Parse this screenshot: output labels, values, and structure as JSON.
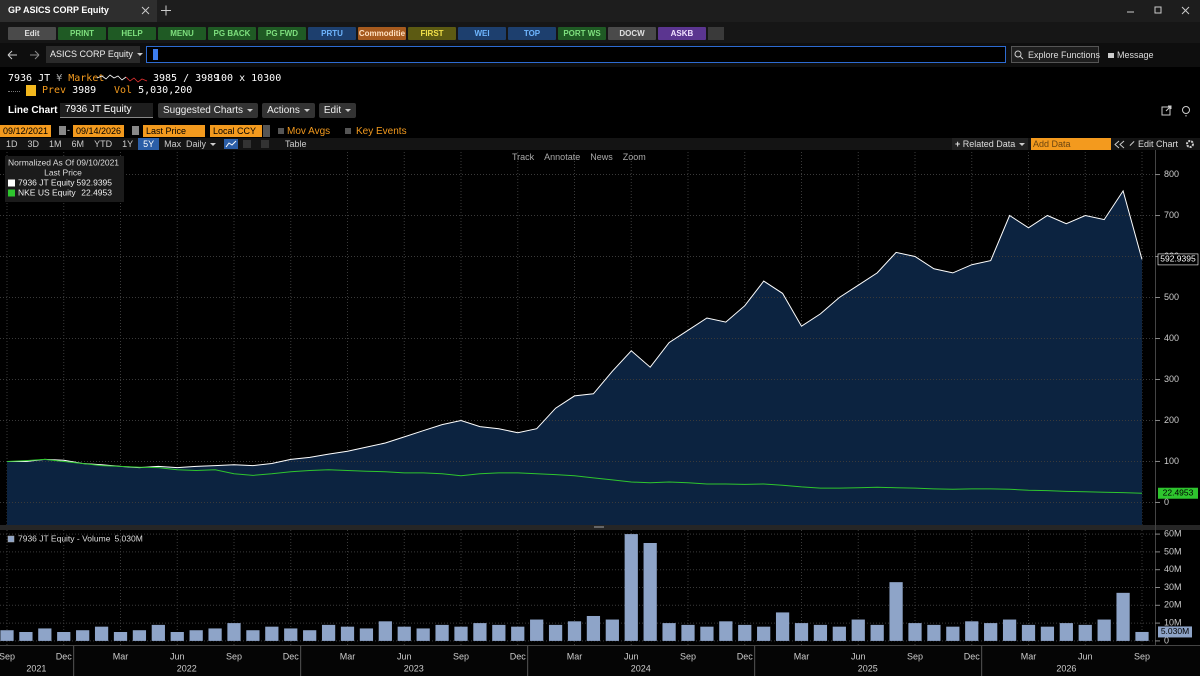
{
  "tab": {
    "title": "GP ASICS CORP Equity"
  },
  "function_buttons": [
    {
      "label": "Edit",
      "color": "#4a4a4a",
      "text_color": "#e0e0e0"
    },
    {
      "label": "PRINT",
      "color": "#1f5a24",
      "text_color": "#7ee07e"
    },
    {
      "label": "HELP",
      "color": "#1f5a24",
      "text_color": "#7ee07e"
    },
    {
      "label": "MENU",
      "color": "#1f5a24",
      "text_color": "#7ee07e"
    },
    {
      "label": "PG BACK",
      "color": "#1f5a24",
      "text_color": "#7ee07e"
    },
    {
      "label": "PG FWD",
      "color": "#1f5a24",
      "text_color": "#7ee07e"
    },
    {
      "label": "PRTU",
      "color": "#1d3f6e",
      "text_color": "#6fb6ff"
    },
    {
      "label": "Commoditie",
      "color": "#a65a1e",
      "text_color": "#ffe0c0"
    },
    {
      "label": "FIRST",
      "color": "#5c5a12",
      "text_color": "#f2e24a"
    },
    {
      "label": "WEI",
      "color": "#1d3f6e",
      "text_color": "#6fb6ff"
    },
    {
      "label": "TOP",
      "color": "#1d3f6e",
      "text_color": "#6fb6ff"
    },
    {
      "label": "PORT WS",
      "color": "#1f5a24",
      "text_color": "#7ee07e"
    },
    {
      "label": "DOCW",
      "color": "#4a4a4a",
      "text_color": "#e0e0e0"
    },
    {
      "label": "ASKB",
      "color": "#5b3590",
      "text_color": "#f0e0ff"
    }
  ],
  "command": {
    "security": "ASICS CORP Equity",
    "explore": "Explore Functions",
    "message": "Message"
  },
  "quote": {
    "ticker": "7936 JT",
    "currency": "¥",
    "status": "Market",
    "bid_ask": "3985 / 3989",
    "size": "100 x 10300",
    "prev_label": "Prev",
    "prev": "3989",
    "vol_label": "Vol",
    "vol": "5,030,200"
  },
  "chart_header": {
    "title": "Line Chart",
    "security": "7936 JT Equity",
    "menus": [
      "Suggested Charts",
      "Actions",
      "Edit"
    ]
  },
  "controls": {
    "start": "09/12/2021",
    "end": "09/14/2026",
    "field": "Last Price",
    "currency": "Local CCY",
    "checks": [
      "Mov Avgs",
      "Key Events"
    ],
    "periods": [
      "1D",
      "3D",
      "1M",
      "6M",
      "YTD",
      "1Y",
      "5Y",
      "Max"
    ],
    "selected": "5Y",
    "frequency": "Daily",
    "table": "Table",
    "related": "Related Data",
    "add_data": "Add Data",
    "edit_chart": "Edit Chart"
  },
  "chart_tools": [
    "Track",
    "Annotate",
    "News",
    "Zoom"
  ],
  "chart_data": [
    {
      "type": "line",
      "title": "Normalized As Of 09/10/2021",
      "subtitle": "Last Price",
      "x": [
        "2021-09",
        "2021-10",
        "2021-11",
        "2021-12",
        "2022-01",
        "2022-02",
        "2022-03",
        "2022-04",
        "2022-05",
        "2022-06",
        "2022-07",
        "2022-08",
        "2022-09",
        "2022-10",
        "2022-11",
        "2022-12",
        "2023-01",
        "2023-02",
        "2023-03",
        "2023-04",
        "2023-05",
        "2023-06",
        "2023-07",
        "2023-08",
        "2023-09",
        "2023-10",
        "2023-11",
        "2023-12",
        "2024-01",
        "2024-02",
        "2024-03",
        "2024-04",
        "2024-05",
        "2024-06",
        "2024-07",
        "2024-08",
        "2024-09",
        "2024-10",
        "2024-11",
        "2024-12",
        "2025-01",
        "2025-02",
        "2025-03",
        "2025-04",
        "2025-05",
        "2025-06",
        "2025-07",
        "2025-08",
        "2025-09",
        "2025-10",
        "2025-11",
        "2025-12",
        "2026-01",
        "2026-02",
        "2026-03",
        "2026-04",
        "2026-05",
        "2026-06",
        "2026-07",
        "2026-08",
        "2026-09"
      ],
      "xticks": [
        {
          "value": "2021-09",
          "label": "Sep"
        },
        {
          "value": "2021-12",
          "label": "Dec"
        },
        {
          "value": "2022-03",
          "label": "Mar"
        },
        {
          "value": "2022-06",
          "label": "Jun"
        },
        {
          "value": "2022-09",
          "label": "Sep"
        },
        {
          "value": "2022-12",
          "label": "Dec"
        },
        {
          "value": "2023-03",
          "label": "Mar"
        },
        {
          "value": "2023-06",
          "label": "Jun"
        },
        {
          "value": "2023-09",
          "label": "Sep"
        },
        {
          "value": "2023-12",
          "label": "Dec"
        },
        {
          "value": "2024-03",
          "label": "Mar"
        },
        {
          "value": "2024-06",
          "label": "Jun"
        },
        {
          "value": "2024-09",
          "label": "Sep"
        },
        {
          "value": "2024-12",
          "label": "Dec"
        },
        {
          "value": "2025-03",
          "label": "Mar"
        },
        {
          "value": "2025-06",
          "label": "Jun"
        },
        {
          "value": "2025-09",
          "label": "Sep"
        },
        {
          "value": "2025-12",
          "label": "Dec"
        },
        {
          "value": "2026-03",
          "label": "Mar"
        },
        {
          "value": "2026-06",
          "label": "Jun"
        },
        {
          "value": "2026-09",
          "label": "Sep"
        }
      ],
      "years": [
        "2021",
        "2022",
        "2023",
        "2024",
        "2025",
        "2026"
      ],
      "ylim": [
        -55,
        855
      ],
      "yticks": [
        0,
        100,
        200,
        300,
        400,
        500,
        600,
        700,
        800
      ],
      "grid": true,
      "series": [
        {
          "name": "7936 JT Equity",
          "color": "#ffffff",
          "area_color": "#0c2340",
          "values": [
            100,
            100,
            105,
            103,
            95,
            92,
            88,
            85,
            88,
            85,
            88,
            90,
            92,
            90,
            95,
            105,
            110,
            118,
            125,
            135,
            145,
            160,
            175,
            190,
            200,
            185,
            180,
            170,
            180,
            230,
            260,
            265,
            320,
            370,
            330,
            390,
            420,
            450,
            440,
            480,
            540,
            510,
            430,
            460,
            500,
            530,
            560,
            610,
            600,
            570,
            560,
            580,
            590,
            700,
            670,
            700,
            680,
            700,
            690,
            760,
            592.9395
          ]
        },
        {
          "name": "NKE US Equity",
          "color": "#2ec52e",
          "values": [
            100,
            102,
            105,
            100,
            95,
            90,
            88,
            86,
            85,
            80,
            78,
            80,
            70,
            66,
            70,
            75,
            78,
            80,
            78,
            76,
            75,
            72,
            72,
            70,
            65,
            70,
            72,
            72,
            70,
            68,
            65,
            60,
            55,
            50,
            48,
            50,
            48,
            45,
            45,
            44,
            45,
            42,
            38,
            35,
            35,
            36,
            37,
            36,
            35,
            33,
            32,
            33,
            33,
            32,
            30,
            29,
            27,
            26,
            25,
            24,
            22.4953
          ]
        }
      ]
    },
    {
      "type": "bar",
      "ylim": [
        -2300000,
        62300000
      ],
      "yticks": [
        0,
        {
          "value": 10000000,
          "label": "10M"
        },
        {
          "value": 20000000,
          "label": "20M"
        },
        {
          "value": 30000000,
          "label": "30M"
        },
        {
          "value": 40000000,
          "label": "40M"
        },
        {
          "value": 50000000,
          "label": "50M"
        },
        {
          "value": 60000000,
          "label": "60M"
        }
      ],
      "grid": true,
      "series": [
        {
          "name": "7936 JT Equity - Volume",
          "color": "#8ea4c8",
          "last_label": "5.030M",
          "values": [
            6000000,
            5000000,
            7000000,
            5000000,
            6000000,
            8000000,
            5000000,
            6000000,
            9000000,
            5000000,
            6000000,
            7000000,
            10000000,
            6000000,
            8000000,
            7000000,
            6000000,
            9000000,
            8000000,
            7000000,
            11000000,
            8000000,
            7000000,
            9000000,
            8000000,
            10000000,
            9000000,
            8000000,
            12000000,
            9000000,
            11000000,
            14000000,
            12000000,
            60000000,
            55000000,
            10000000,
            9000000,
            8000000,
            11000000,
            9000000,
            8000000,
            16000000,
            10000000,
            9000000,
            8000000,
            12000000,
            9000000,
            33000000,
            10000000,
            9000000,
            8000000,
            11000000,
            10000000,
            12000000,
            9000000,
            8000000,
            10000000,
            9000000,
            12000000,
            27000000,
            5030000
          ]
        }
      ]
    }
  ]
}
